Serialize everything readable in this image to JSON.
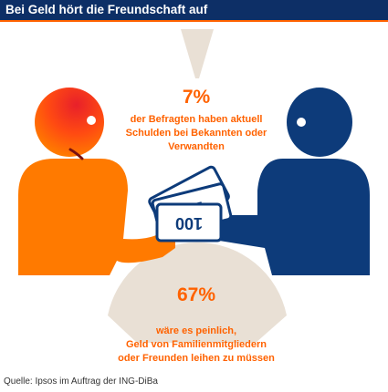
{
  "title": "Bei Geld hört die Freundschaft auf",
  "stat_top": {
    "value": "7%",
    "lines": [
      "der Befragten haben aktuell",
      "Schulden bei Bekannten oder",
      "Verwandten"
    ]
  },
  "stat_bottom": {
    "value": "67%",
    "lines": [
      "wäre es peinlich,",
      "Geld von Familienmitgliedern",
      "oder Freunden leihen zu müssen"
    ]
  },
  "banknote_value": "100",
  "source": "Quelle: Ipsos im Auftrag der ING-DiBa",
  "colors": {
    "header": "#0d2f66",
    "accent": "#ff6200",
    "person_left": "#ff7a00",
    "person_left_face": "#e8202a",
    "person_right": "#0d3b7a",
    "cone": "#e9e0d5"
  }
}
